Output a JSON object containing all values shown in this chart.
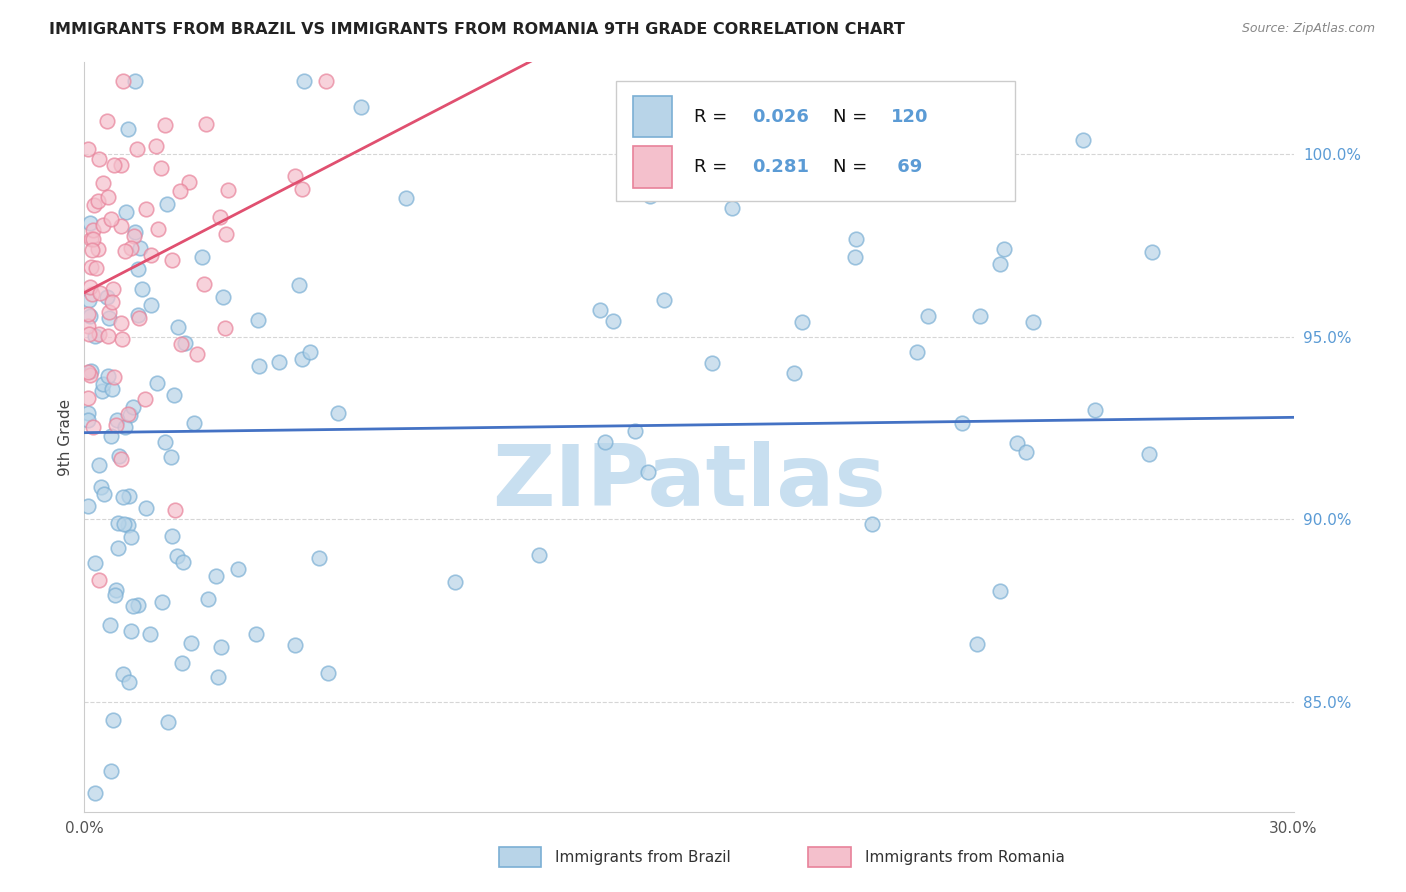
{
  "title": "IMMIGRANTS FROM BRAZIL VS IMMIGRANTS FROM ROMANIA 9TH GRADE CORRELATION CHART",
  "source": "Source: ZipAtlas.com",
  "ylabel": "9th Grade",
  "x_min": 0.0,
  "x_max": 0.3,
  "y_min": 0.82,
  "y_max": 1.025,
  "brazil_R": 0.026,
  "brazil_N": 120,
  "romania_R": 0.281,
  "romania_N": 69,
  "brazil_color": "#7bafd4",
  "brazil_fill": "#b8d4e8",
  "brazil_line_color": "#4472c4",
  "romania_color": "#e8829a",
  "romania_fill": "#f4c0cc",
  "romania_line_color": "#e05070",
  "ytick_color": "#5b9bd5",
  "watermark_color": "#c8dff0",
  "legend_brazil_label": "Immigrants from Brazil",
  "legend_romania_label": "Immigrants from Romania"
}
